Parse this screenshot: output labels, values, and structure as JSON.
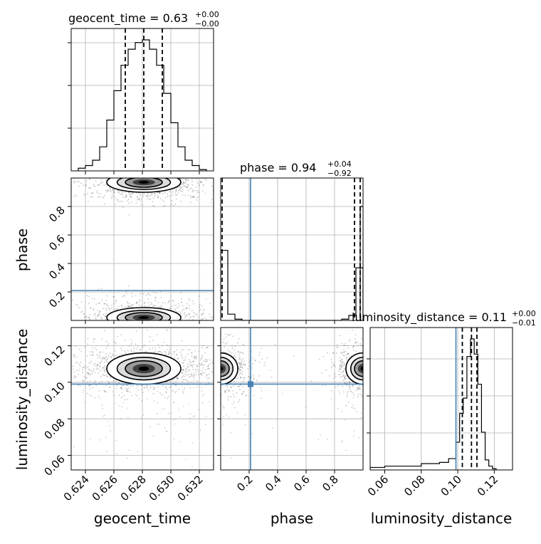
{
  "figure": {
    "type": "corner-plot",
    "parameters": [
      "geocent_time",
      "phase",
      "luminosity_distance"
    ],
    "titles": [
      {
        "param": "geocent_time",
        "text": "geocent_time = 0.63",
        "sup": "+0.00",
        "sub": "−0.00"
      },
      {
        "param": "phase",
        "text": "phase = 0.94",
        "sup": "+0.04",
        "sub": "−0.92"
      },
      {
        "param": "luminosity_distance",
        "text": "luminosity_distance = 0.11",
        "sup": "+0.00",
        "sub": "−0.01"
      }
    ],
    "axis_labels": {
      "x": [
        "geocent_time",
        "phase",
        "luminosity_distance"
      ],
      "y": [
        "phase",
        "luminosity_distance"
      ]
    },
    "colors": {
      "truth": "#4682b4",
      "contour": "#000000",
      "grid": "#b0b0b0"
    }
  },
  "chart_data": [
    {
      "type": "histogram",
      "panel": "geocent_time-marginal",
      "xlim": [
        0.623,
        0.633
      ],
      "xticks": [
        "0.624",
        "0.626",
        "0.628",
        "0.630",
        "0.632"
      ],
      "xtick_values": [
        0.624,
        0.626,
        0.628,
        0.63,
        0.632
      ],
      "bin_edges": [
        0.6235,
        0.624,
        0.6245,
        0.625,
        0.6255,
        0.626,
        0.6265,
        0.627,
        0.6275,
        0.628,
        0.6285,
        0.629,
        0.6295,
        0.63,
        0.6305,
        0.631,
        0.6315,
        0.632,
        0.6325
      ],
      "counts": [
        2,
        4,
        8,
        18,
        38,
        60,
        79,
        91,
        96,
        98,
        91,
        79,
        58,
        36,
        18,
        8,
        4,
        1
      ],
      "quantiles": [
        0.6268,
        0.6281,
        0.6294
      ],
      "grid": true
    },
    {
      "type": "scatter-density",
      "panel": "phase-vs-geocent_time",
      "xlim": [
        0.623,
        0.633
      ],
      "ylim": [
        0.0,
        1.0
      ],
      "yticks": [
        "0.2",
        "0.4",
        "0.6",
        "0.8"
      ],
      "ytick_values": [
        0.2,
        0.4,
        0.6,
        0.8
      ],
      "modes": [
        {
          "x": 0.6281,
          "y": 0.97
        },
        {
          "x": 0.6281,
          "y": 0.02
        }
      ],
      "truth": {
        "y": 0.21
      },
      "grid": true
    },
    {
      "type": "histogram",
      "panel": "phase-marginal",
      "xlim": [
        0.0,
        1.0
      ],
      "bin_edges": [
        0.0,
        0.05,
        0.1,
        0.15,
        0.2,
        0.25,
        0.3,
        0.35,
        0.4,
        0.45,
        0.5,
        0.55,
        0.6,
        0.65,
        0.7,
        0.75,
        0.8,
        0.85,
        0.9,
        0.95,
        1.0
      ],
      "counts": [
        56,
        5,
        1,
        0,
        0,
        0,
        0,
        0,
        0,
        0,
        0,
        0,
        0,
        0,
        0,
        0,
        0,
        1,
        4,
        42
      ],
      "extra_step": {
        "x": [
          0.98,
          1.0
        ],
        "count": 91
      },
      "quantiles": [
        0.01,
        0.94,
        0.98
      ],
      "truth": {
        "x": 0.21
      },
      "grid": true
    },
    {
      "type": "scatter-density",
      "panel": "luminosity_distance-vs-geocent_time",
      "xlim": [
        0.623,
        0.633
      ],
      "ylim": [
        0.052,
        0.13
      ],
      "yticks": [
        "0.06",
        "0.08",
        "0.10",
        "0.12"
      ],
      "ytick_values": [
        0.06,
        0.08,
        0.1,
        0.12
      ],
      "modes": [
        {
          "x": 0.6281,
          "y": 0.1075
        }
      ],
      "truth": {
        "y": 0.099
      },
      "grid": true
    },
    {
      "type": "scatter-density",
      "panel": "luminosity_distance-vs-phase",
      "xlim": [
        0.0,
        1.0
      ],
      "ylim": [
        0.052,
        0.13
      ],
      "xticks": [
        "0.2",
        "0.4",
        "0.6",
        "0.8"
      ],
      "xtick_values": [
        0.2,
        0.4,
        0.6,
        0.8
      ],
      "modes": [
        {
          "x": 0.0,
          "y": 0.1075
        },
        {
          "x": 1.0,
          "y": 0.1075
        }
      ],
      "truth": {
        "x": 0.21,
        "y": 0.099
      },
      "grid": true
    },
    {
      "type": "histogram",
      "panel": "luminosity_distance-marginal",
      "xlim": [
        0.052,
        0.13
      ],
      "xticks": [
        "0.06",
        "0.08",
        "0.10",
        "0.12"
      ],
      "xtick_values": [
        0.06,
        0.08,
        0.1,
        0.12
      ],
      "bin_edges": [
        0.052,
        0.06,
        0.07,
        0.08,
        0.09,
        0.095,
        0.099,
        0.101,
        0.103,
        0.105,
        0.107,
        0.109,
        0.111,
        0.113,
        0.115,
        0.117,
        0.119,
        0.121
      ],
      "counts": [
        2,
        3,
        3,
        5,
        6,
        9,
        22,
        45,
        57,
        90,
        104,
        92,
        68,
        30,
        8,
        3,
        1
      ],
      "quantiles": [
        0.1025,
        0.1075,
        0.1105
      ],
      "truth": {
        "x": 0.099
      },
      "grid": true
    }
  ]
}
